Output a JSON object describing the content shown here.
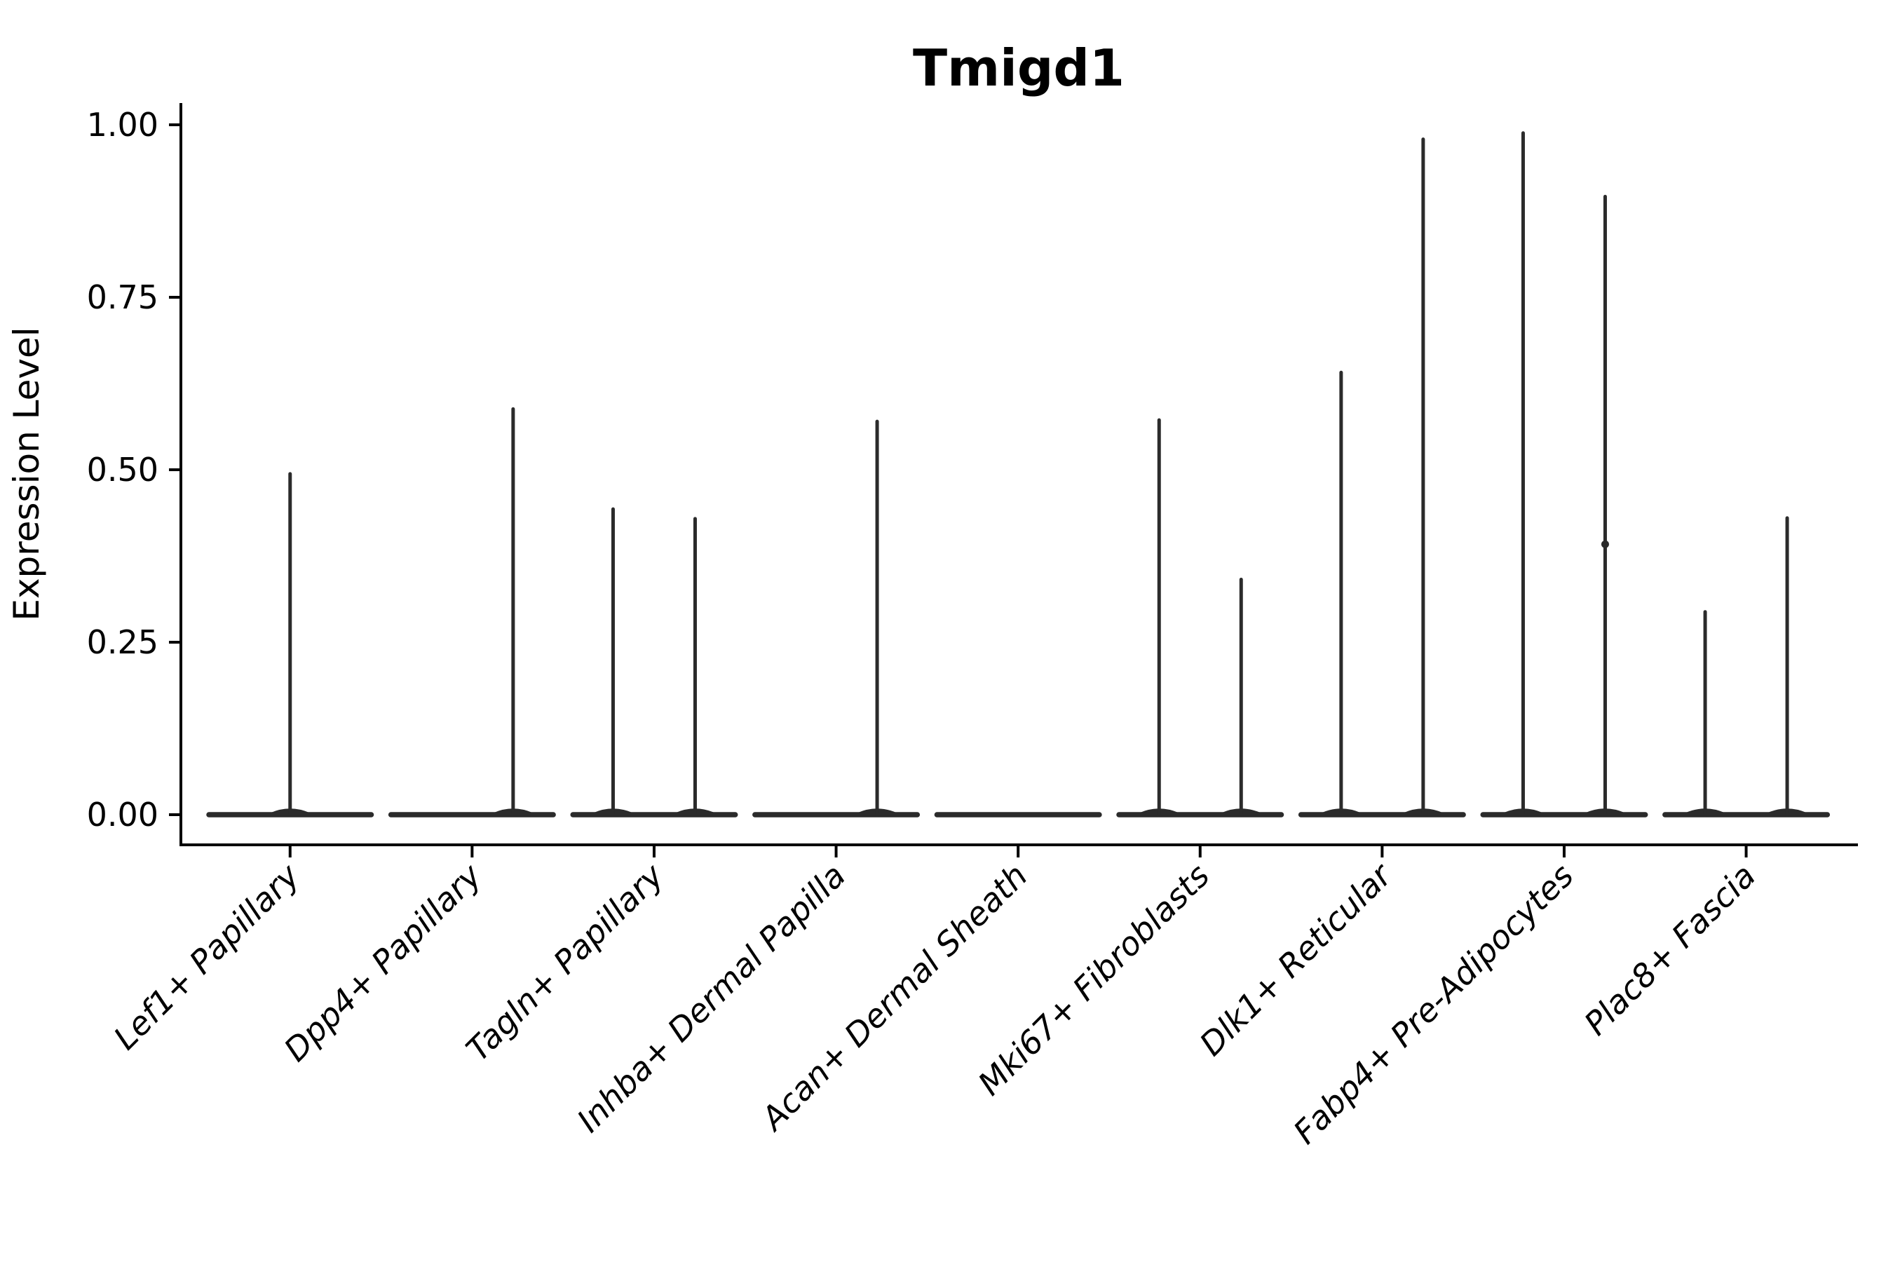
{
  "chart_data": {
    "type": "violin",
    "title": "Tmigd1",
    "ylabel": "Expression Level",
    "xlabel": "",
    "ylim": [
      0,
      1.0
    ],
    "yticks": [
      0.0,
      0.25,
      0.5,
      0.75,
      1.0
    ],
    "ytick_labels": [
      "0.00",
      "0.25",
      "0.50",
      "0.75",
      "1.00"
    ],
    "grid": "off",
    "legend": "none",
    "x_label_angle_deg": 45,
    "categories": [
      {
        "label": "Lef1+ Papillary",
        "violins": [
          {
            "side": 0,
            "max": 0.494
          }
        ]
      },
      {
        "label": "Dpp4+ Papillary",
        "violins": [
          {
            "side": -1,
            "max": 0
          },
          {
            "side": 1,
            "max": 0.588
          }
        ]
      },
      {
        "label": "Tagln+ Papillary",
        "violins": [
          {
            "side": -1,
            "max": 0.443
          },
          {
            "side": 1,
            "max": 0.429
          }
        ]
      },
      {
        "label": "Inhba+ Dermal Papilla",
        "violins": [
          {
            "side": -1,
            "max": 0
          },
          {
            "side": 1,
            "max": 0.57
          }
        ]
      },
      {
        "label": "Acan+ Dermal Sheath",
        "violins": [
          {
            "side": 0,
            "max": 0
          }
        ]
      },
      {
        "label": "Mki67+ Fibroblasts",
        "violins": [
          {
            "side": -1,
            "max": 0.572
          },
          {
            "side": 1,
            "max": 0.341
          }
        ]
      },
      {
        "label": "Dlk1+ Reticular",
        "violins": [
          {
            "side": -1,
            "max": 0.641
          },
          {
            "side": 1,
            "max": 0.979
          }
        ]
      },
      {
        "label": "Fabp4+ Pre-Adipocytes",
        "violins": [
          {
            "side": -1,
            "max": 0.988
          },
          {
            "side": 1,
            "max": 0.896,
            "point": 0.392
          }
        ]
      },
      {
        "label": "Plac8+ Fascia",
        "violins": [
          {
            "side": -1,
            "max": 0.294
          },
          {
            "side": 1,
            "max": 0.43
          }
        ]
      }
    ],
    "colors": {
      "violin": "#2b2b2b",
      "axis": "#000000",
      "text": "#000000",
      "background": "#ffffff"
    }
  }
}
